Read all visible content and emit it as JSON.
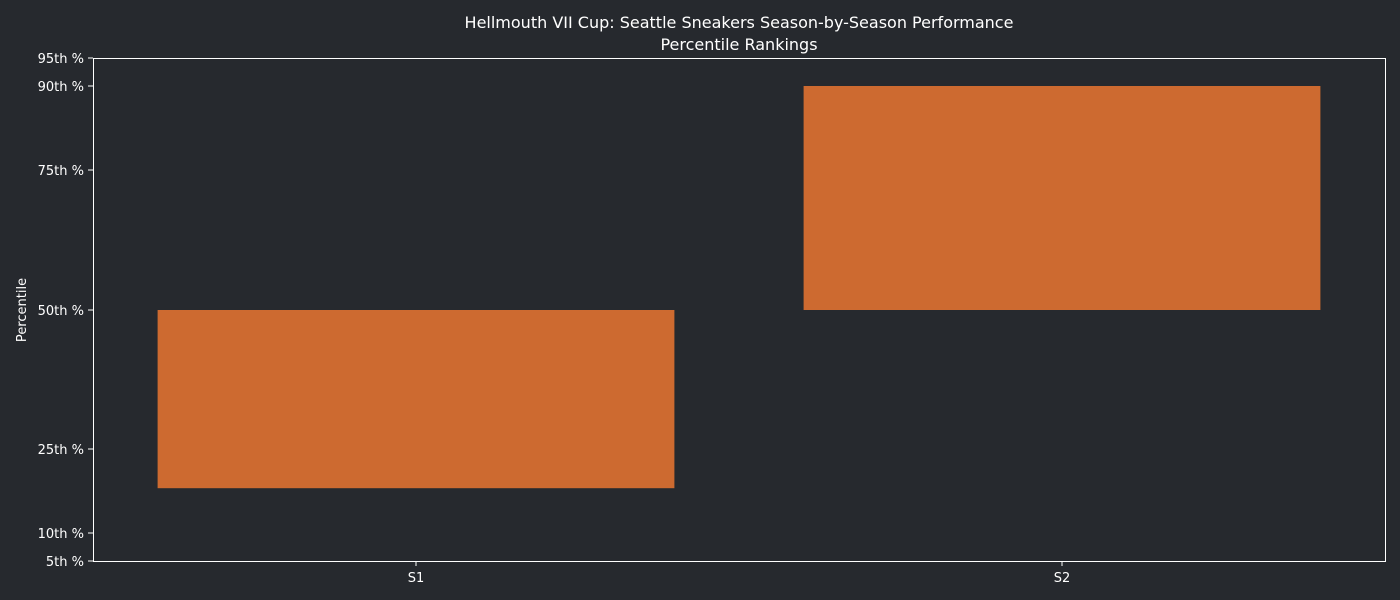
{
  "chart_data": {
    "type": "bar",
    "title": "Hellmouth VII Cup: Seattle Sneakers Season-by-Season Performance",
    "subtitle": "Percentile Rankings",
    "xlabel": "",
    "ylabel": "Percentile",
    "categories": [
      "S1",
      "S2"
    ],
    "series": [
      {
        "ranges": [
          [
            18,
            50
          ],
          [
            50,
            90
          ]
        ],
        "color": "#cd6a30"
      }
    ],
    "y_ticks": [
      {
        "value": 5,
        "label": "5th %"
      },
      {
        "value": 10,
        "label": "10th %"
      },
      {
        "value": 25,
        "label": "25th %"
      },
      {
        "value": 50,
        "label": "50th %"
      },
      {
        "value": 75,
        "label": "75th %"
      },
      {
        "value": 90,
        "label": "90th %"
      },
      {
        "value": 95,
        "label": "95th %"
      }
    ],
    "ylim": [
      5,
      95
    ],
    "grid": false,
    "legend": "none",
    "colors": {
      "background": "#26292e",
      "axes": "#ffffff",
      "text": "#ffffff",
      "bar": "#cd6a30"
    }
  }
}
